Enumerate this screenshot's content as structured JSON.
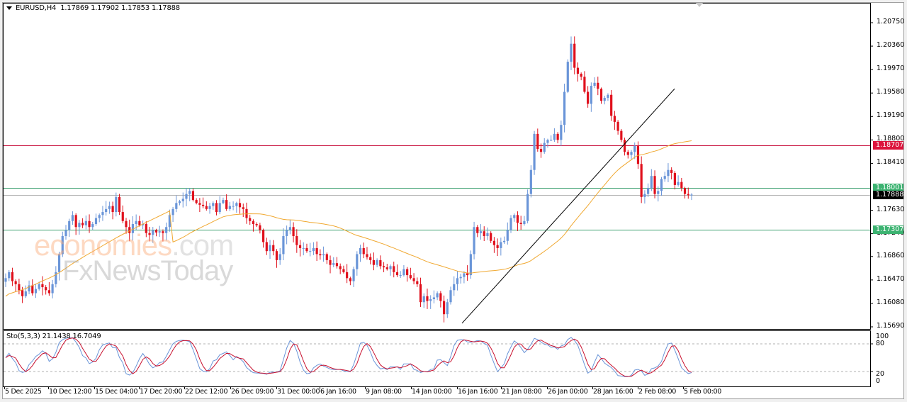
{
  "chart_meta": {
    "symbol": "EURUSD,H4",
    "header_values": "1.17869 1.17902 1.17853 1.17888",
    "stochastic_label": "Sto(5,3,3) 21.1438 16.7049"
  },
  "watermark": {
    "line1_main": "economies",
    "line1_suffix": ".com",
    "line2": "FxNewsToday"
  },
  "price_axis": {
    "labels": [
      "1.20750",
      "1.20360",
      "1.19970",
      "1.19580",
      "1.19190",
      "1.18800",
      "1.18410",
      "1.17630",
      "1.17240",
      "1.16860",
      "1.16470",
      "1.16080",
      "1.15690"
    ],
    "tags": [
      {
        "value": "1.18707",
        "color": "#dc143c",
        "name": "resistance-tag"
      },
      {
        "value": "1.18001",
        "color": "#3cb371",
        "name": "upper-support-tag"
      },
      {
        "value": "1.17888",
        "color": "#000000",
        "name": "current-price-tag"
      },
      {
        "value": "1.17307",
        "color": "#3cb371",
        "name": "lower-support-tag"
      }
    ]
  },
  "stoch_axis": {
    "labels": [
      "100",
      "80",
      "20",
      "0"
    ]
  },
  "time_axis": {
    "labels": [
      "5 Dec 2025",
      "10 Dec 12:00",
      "15 Dec 04:00",
      "17 Dec 20:00",
      "22 Dec 12:00",
      "26 Dec 09:00",
      "31 Dec 00:00",
      "6 Jan 16:00",
      "9 Jan 08:00",
      "14 Jan 00:00",
      "16 Jan 16:00",
      "21 Jan 08:00",
      "26 Jan 00:00",
      "28 Jan 16:00",
      "2 Feb 08:00",
      "5 Feb 00:00"
    ]
  },
  "colors": {
    "bull": "#6a95d8",
    "bear": "#e0101c",
    "ma": "#f0a830",
    "resistance": "#c8103c",
    "support": "#3ca070",
    "current": "#b4b4b4",
    "trendline": "#000000",
    "stoch_main": "#6a95d8",
    "stoch_signal": "#c8102e"
  },
  "chart_data": {
    "type": "candlestick",
    "title": "EURUSD,H4",
    "ylim": [
      1.1569,
      1.21
    ],
    "horizontal_lines": [
      {
        "price": 1.18707,
        "label": "1.18707",
        "color": "#c8103c"
      },
      {
        "price": 1.18001,
        "label": "1.18001",
        "color": "#3ca070"
      },
      {
        "price": 1.17888,
        "label": "1.17888",
        "color": "#b4b4b4"
      },
      {
        "price": 1.17307,
        "label": "1.17307",
        "color": "#3ca070"
      }
    ],
    "trendline": {
      "from": {
        "x": 652,
        "price": 1.1575
      },
      "to": {
        "x": 952,
        "price": 1.1965
      }
    },
    "x_tick_labels": [
      "5 Dec 2025",
      "10 Dec 12:00",
      "15 Dec 04:00",
      "17 Dec 20:00",
      "22 Dec 12:00",
      "26 Dec 09:00",
      "31 Dec 00:00",
      "6 Jan 16:00",
      "9 Jan 08:00",
      "14 Jan 00:00",
      "16 Jan 16:00",
      "21 Jan 08:00",
      "26 Jan 00:00",
      "28 Jan 16:00",
      "2 Feb 08:00",
      "5 Feb 00:00"
    ],
    "closes": [
      1.165,
      1.166,
      1.1645,
      1.164,
      1.163,
      1.162,
      1.1628,
      1.1638,
      1.1625,
      1.1632,
      1.164,
      1.1635,
      1.163,
      1.1625,
      1.164,
      1.166,
      1.169,
      1.172,
      1.173,
      1.1745,
      1.1755,
      1.1735,
      1.1742,
      1.1738,
      1.1745,
      1.1735,
      1.174,
      1.175,
      1.1755,
      1.176,
      1.1765,
      1.177,
      1.176,
      1.1785,
      1.176,
      1.1745,
      1.1735,
      1.1725,
      1.174,
      1.1745,
      1.1738,
      1.174,
      1.1725,
      1.1722,
      1.173,
      1.1726,
      1.1728,
      1.1725,
      1.1735,
      1.1755,
      1.1765,
      1.1775,
      1.1778,
      1.1782,
      1.179,
      1.1795,
      1.178,
      1.1775,
      1.1772,
      1.177,
      1.1765,
      1.177,
      1.1775,
      1.176,
      1.1775,
      1.178,
      1.1765,
      1.177,
      1.177,
      1.1775,
      1.1768,
      1.1765,
      1.175,
      1.1745,
      1.174,
      1.1738,
      1.173,
      1.171,
      1.1695,
      1.1705,
      1.1695,
      1.168,
      1.169,
      1.172,
      1.173,
      1.1735,
      1.172,
      1.1705,
      1.17,
      1.17,
      1.1695,
      1.1695,
      1.17,
      1.169,
      1.1688,
      1.169,
      1.168,
      1.1672,
      1.1675,
      1.167,
      1.1665,
      1.166,
      1.165,
      1.1645,
      1.1665,
      1.169,
      1.17,
      1.169,
      1.1685,
      1.168,
      1.1672,
      1.168,
      1.167,
      1.1668,
      1.1665,
      1.167,
      1.166,
      1.1655,
      1.1655,
      1.1665,
      1.1655,
      1.165,
      1.1645,
      1.164,
      1.161,
      1.162,
      1.1612,
      1.1615,
      1.1618,
      1.1625,
      1.1612,
      1.159,
      1.161,
      1.163,
      1.164,
      1.165,
      1.1652,
      1.1658,
      1.1655,
      1.169,
      1.1735,
      1.1725,
      1.1728,
      1.172,
      1.1725,
      1.1712,
      1.1705,
      1.17,
      1.171,
      1.1712,
      1.173,
      1.175,
      1.1755,
      1.1742,
      1.174,
      1.1745,
      1.179,
      1.183,
      1.189,
      1.1865,
      1.186,
      1.1875,
      1.188,
      1.188,
      1.189,
      1.188,
      1.1905,
      1.196,
      1.201,
      1.204,
      1.2,
      1.199,
      1.1985,
      1.196,
      1.194,
      1.197,
      1.1975,
      1.1965,
      1.1945,
      1.195,
      1.1955,
      1.192,
      1.191,
      1.1895,
      1.188,
      1.186,
      1.1855,
      1.186,
      1.187,
      1.184,
      1.1785,
      1.179,
      1.18,
      1.182,
      1.179,
      1.1795,
      1.1815,
      1.182,
      1.183,
      1.1825,
      1.1805,
      1.181,
      1.18,
      1.179,
      1.1788,
      1.1789
    ],
    "indicators": [
      {
        "name": "Moving Average",
        "color": "#f0a830"
      },
      {
        "name": "Sto(5,3,3)",
        "main": 21.1438,
        "signal": 16.7049,
        "levels": [
          80,
          20
        ],
        "range": [
          0,
          100
        ]
      }
    ]
  }
}
